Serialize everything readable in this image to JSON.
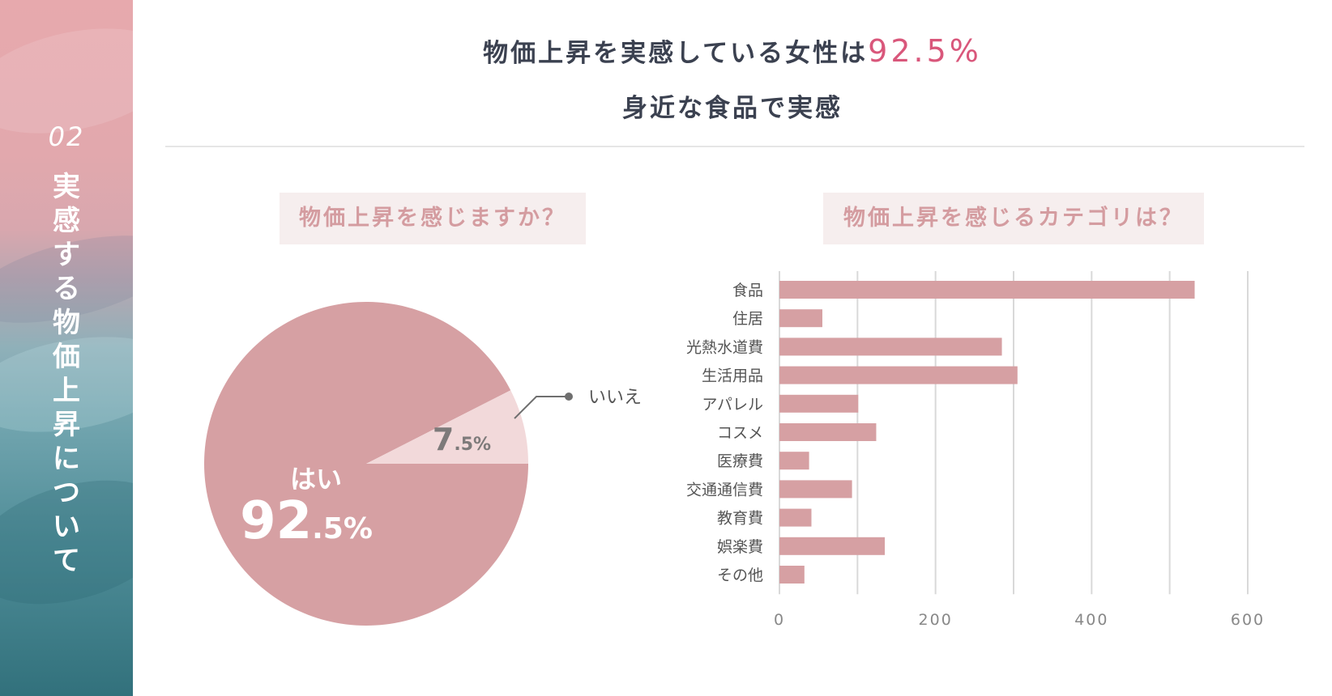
{
  "sidebar": {
    "number": "02",
    "title": "実感する物価上昇について"
  },
  "header": {
    "headline_text": "物価上昇を実感している女性は",
    "headline_value": "92.5%",
    "subline": "身近な食品で実感"
  },
  "pie_section": {
    "tag": "物価上昇を感じますか？"
  },
  "bar_section": {
    "tag": "物価上昇を感じるカテゴリは？"
  },
  "colors": {
    "accent": "#d9577b",
    "bar": "#d6a0a3",
    "pie_yes": "#d6a0a3",
    "pie_no": "#f2d9da",
    "grid": "#d9d9d9",
    "axis_text": "#888888"
  },
  "chart_data": [
    {
      "type": "pie",
      "title": "物価上昇を感じますか？",
      "slices": [
        {
          "label": "はい",
          "value": 92.5,
          "display_int": "92",
          "display_dec": ".5%"
        },
        {
          "label": "いいえ",
          "value": 7.5,
          "display_int": "7",
          "display_dec": ".5%"
        }
      ]
    },
    {
      "type": "bar",
      "orientation": "horizontal",
      "title": "物価上昇を感じるカテゴリは？",
      "categories": [
        "食品",
        "住居",
        "光熱水道費",
        "生活用品",
        "アパレル",
        "コスメ",
        "医療費",
        "交通通信費",
        "教育費",
        "娯楽費",
        "その他"
      ],
      "values": [
        532,
        55,
        285,
        305,
        101,
        124,
        38,
        93,
        41,
        135,
        32
      ],
      "xlim": [
        0,
        600
      ],
      "xticks": [
        0,
        200,
        400,
        600
      ],
      "grid": true,
      "xlabel": "",
      "ylabel": ""
    }
  ]
}
